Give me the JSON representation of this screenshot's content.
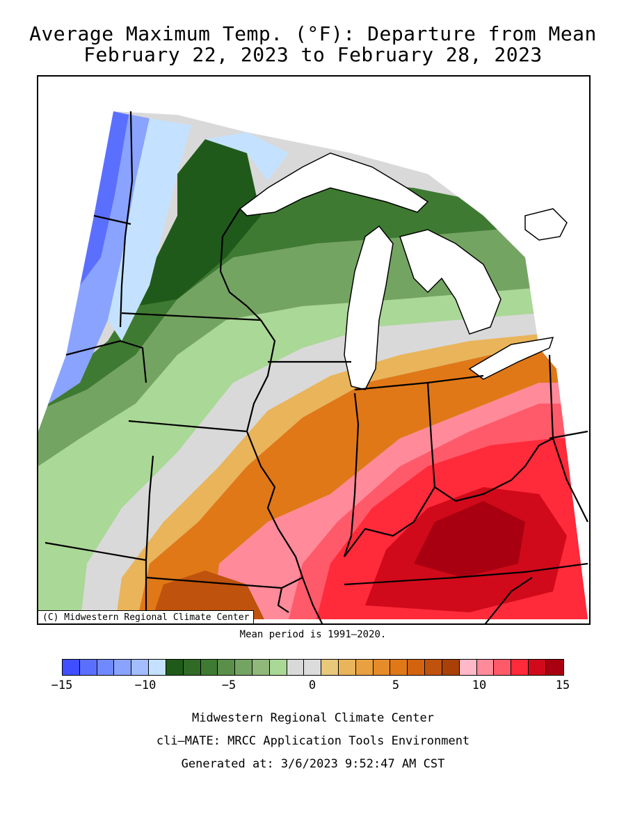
{
  "title_line1": "Average Maximum Temp. (°F): Departure from Mean",
  "title_line2": "February 22, 2023 to February 28, 2023",
  "credit": "(C) Midwestern Regional Climate Center",
  "mean_period": "Mean period is 1991–2020.",
  "legend": {
    "ticks": [
      "−15",
      "−10",
      "−5",
      "0",
      "5",
      "10",
      "15"
    ],
    "colors": [
      "#3f4fff",
      "#5b6fff",
      "#7189ff",
      "#8aa3ff",
      "#a3bdff",
      "#c4e2ff",
      "#1f5a1a",
      "#2f6a26",
      "#3f7a32",
      "#5a8f4a",
      "#74a462",
      "#8fb87a",
      "#aad896",
      "#d9d9d9",
      "#dcdcdc",
      "#e8c87a",
      "#e9b45a",
      "#e8a040",
      "#e58c2a",
      "#e07818",
      "#d26410",
      "#bf520c",
      "#a84008",
      "#ffb8c8",
      "#ff8a9a",
      "#ff5a6a",
      "#ff2a3a",
      "#d00a1a",
      "#a80010"
    ]
  },
  "footer": {
    "line1": "Midwestern Regional Climate Center",
    "line2": "cli–MATE: MRCC Application Tools Environment",
    "line3": "Generated at: 3/6/2023 9:52:47 AM CST"
  }
}
